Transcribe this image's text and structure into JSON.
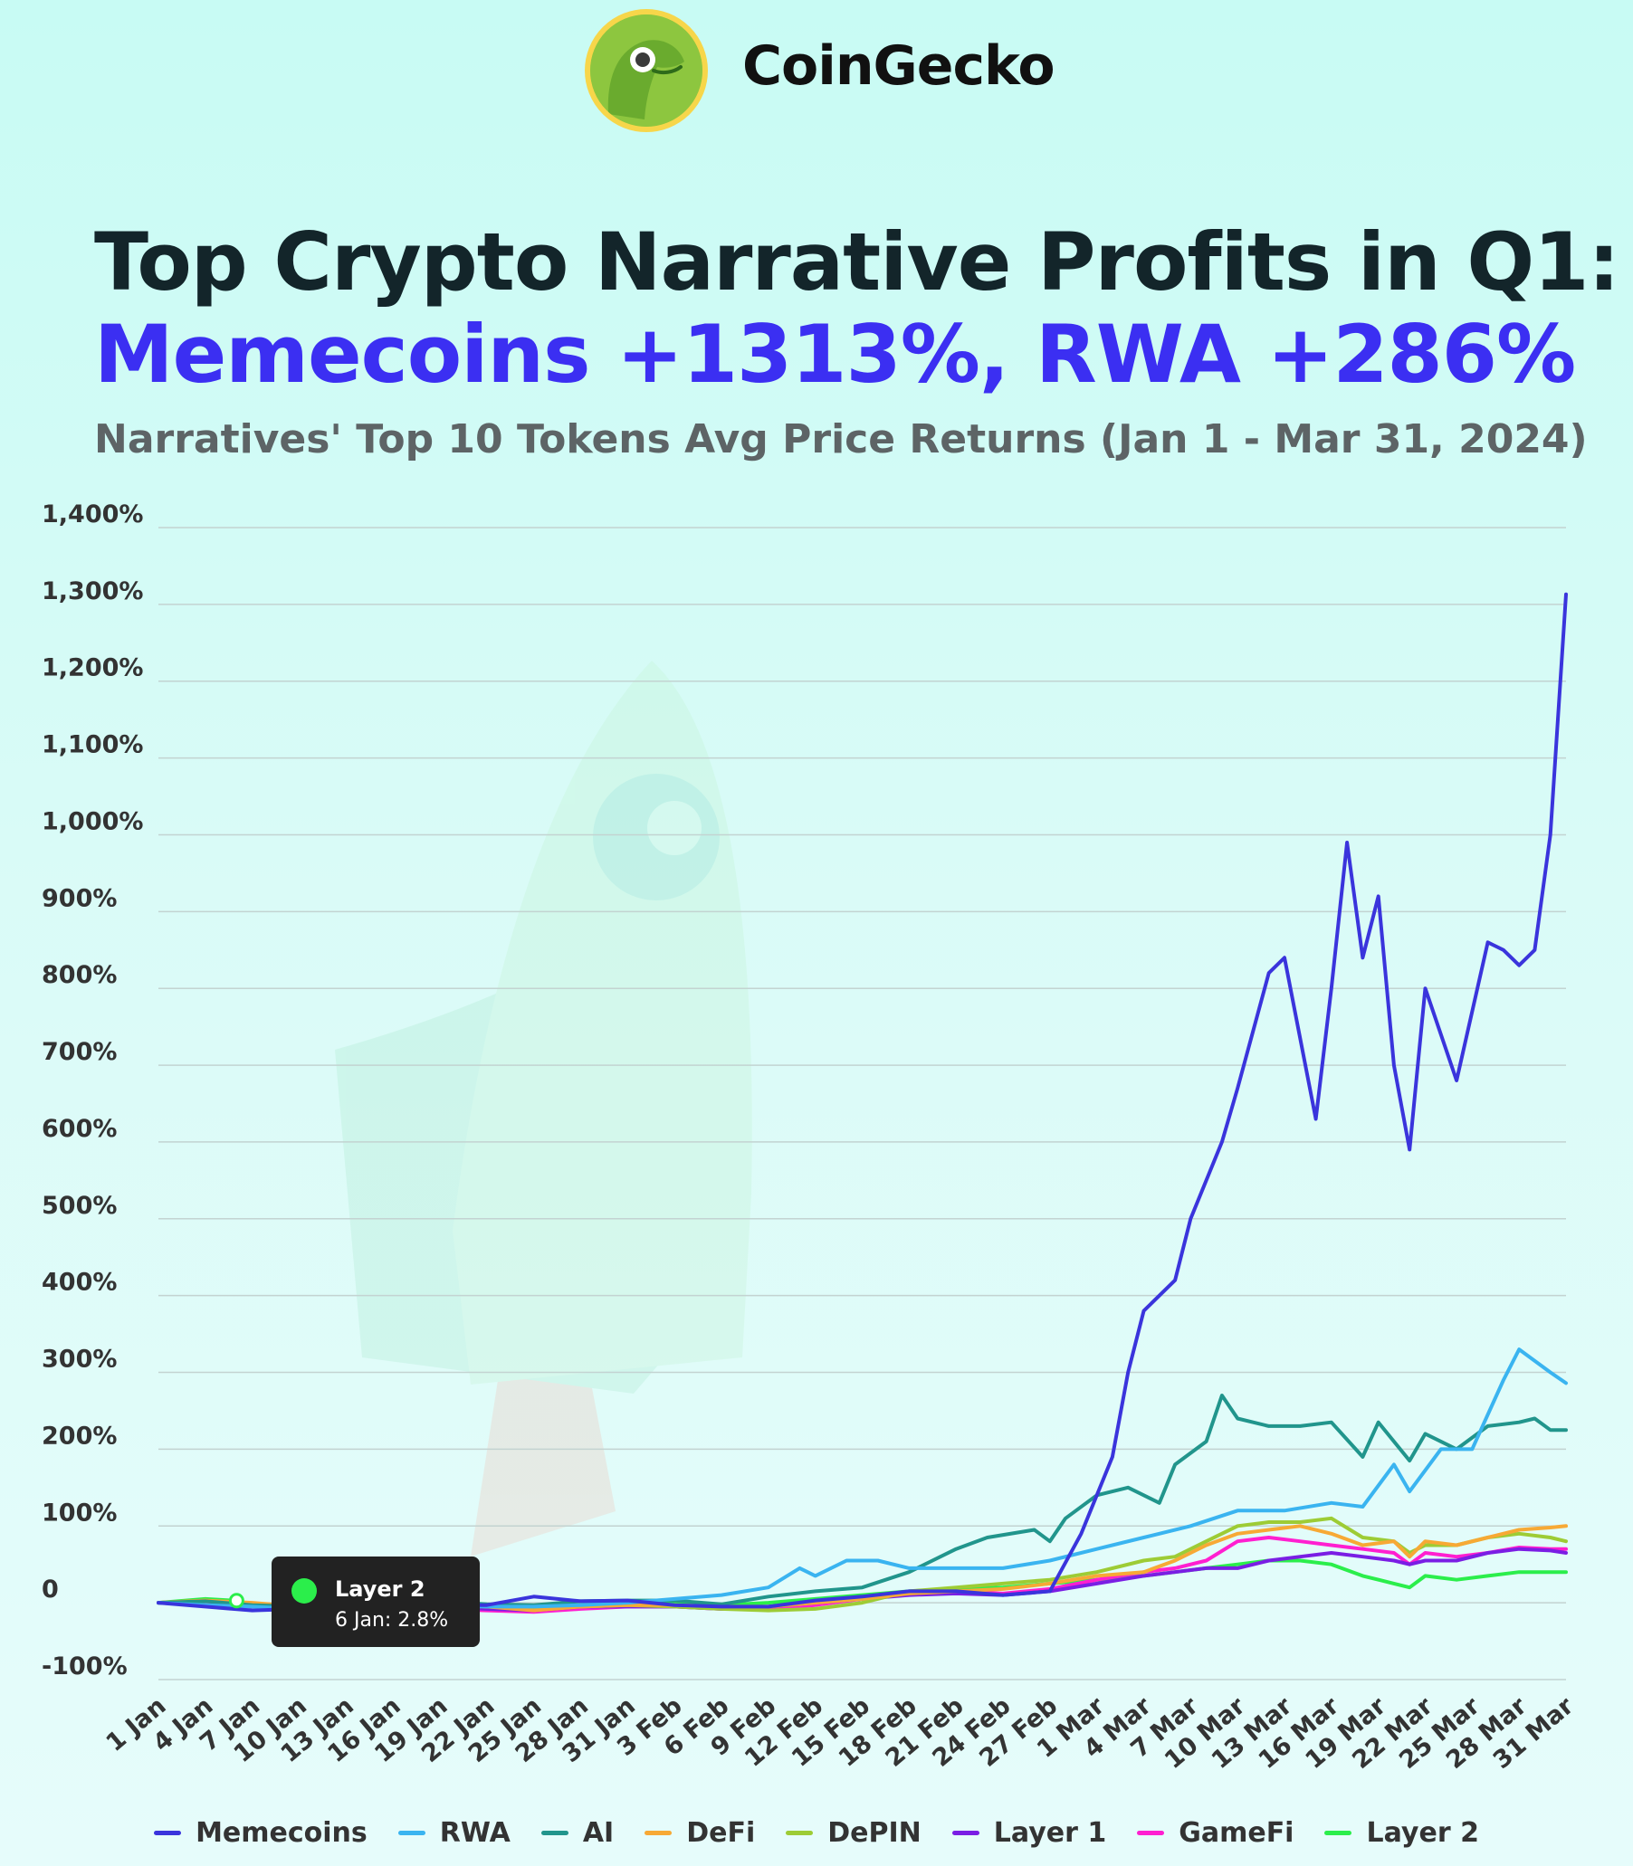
{
  "brand": {
    "name": "CoinGecko"
  },
  "title_line1": "Top Crypto Narrative Profits in Q1:",
  "title_line2": "Memecoins +1313%, RWA +286%",
  "subtitle": "Narratives' Top 10 Tokens Avg Price Returns (Jan 1 - Mar 31, 2024)",
  "tooltip": {
    "series": "Layer 2",
    "text": "6 Jan: 2.8%",
    "color": "#2bee4b"
  },
  "chart_data": {
    "type": "line",
    "title": "Narratives' Top 10 Tokens Avg Price Returns (Jan 1 - Mar 31, 2024)",
    "xlabel": "",
    "ylabel": "",
    "ylim": [
      -100,
      1400
    ],
    "yticks": [
      -100,
      0,
      100,
      200,
      300,
      400,
      500,
      600,
      700,
      800,
      900,
      1000,
      1100,
      1200,
      1300,
      1400
    ],
    "ytick_labels": [
      "-100%",
      "0",
      "100%",
      "200%",
      "300%",
      "400%",
      "500%",
      "600%",
      "700%",
      "800%",
      "900%",
      "1,000%",
      "1,100%",
      "1,200%",
      "1,300%",
      "1,400%"
    ],
    "x_tick_labels": [
      "1 Jan",
      "4 Jan",
      "7 Jan",
      "10 Jan",
      "13 Jan",
      "16 Jan",
      "19 Jan",
      "22 Jan",
      "25 Jan",
      "28 Jan",
      "31 Jan",
      "3 Feb",
      "6 Feb",
      "9 Feb",
      "12 Feb",
      "15 Feb",
      "18 Feb",
      "21 Feb",
      "24 Feb",
      "27 Feb",
      "1 Mar",
      "4 Mar",
      "7 Mar",
      "10 Mar",
      "13 Mar",
      "16 Mar",
      "19 Mar",
      "22 Mar",
      "25 Mar",
      "28 Mar",
      "31 Mar"
    ],
    "grid": true,
    "legend_position": "bottom",
    "series": [
      {
        "name": "Memecoins",
        "color": "#3a34dc",
        "points": [
          [
            1,
            0
          ],
          [
            4,
            -5
          ],
          [
            7,
            -10
          ],
          [
            10,
            -8
          ],
          [
            13,
            -5
          ],
          [
            16,
            -5
          ],
          [
            19,
            -3
          ],
          [
            22,
            -3
          ],
          [
            25,
            8
          ],
          [
            28,
            2
          ],
          [
            31,
            3
          ],
          [
            34,
            -3
          ],
          [
            37,
            -5
          ],
          [
            40,
            -5
          ],
          [
            43,
            3
          ],
          [
            46,
            8
          ],
          [
            49,
            15
          ],
          [
            52,
            15
          ],
          [
            55,
            10
          ],
          [
            58,
            15
          ],
          [
            60,
            90
          ],
          [
            62,
            190
          ],
          [
            63,
            300
          ],
          [
            64,
            380
          ],
          [
            66,
            420
          ],
          [
            67,
            500
          ],
          [
            69,
            600
          ],
          [
            70,
            670
          ],
          [
            72,
            820
          ],
          [
            73,
            840
          ],
          [
            75,
            630
          ],
          [
            76,
            800
          ],
          [
            77,
            990
          ],
          [
            78,
            840
          ],
          [
            79,
            920
          ],
          [
            80,
            700
          ],
          [
            81,
            590
          ],
          [
            82,
            800
          ],
          [
            84,
            680
          ],
          [
            86,
            860
          ],
          [
            87,
            850
          ],
          [
            88,
            830
          ],
          [
            89,
            850
          ],
          [
            90,
            1000
          ],
          [
            91,
            1313
          ]
        ]
      },
      {
        "name": "RWA",
        "color": "#3ab4f0",
        "points": [
          [
            1,
            0
          ],
          [
            4,
            -3
          ],
          [
            7,
            -5
          ],
          [
            10,
            -8
          ],
          [
            13,
            -5
          ],
          [
            16,
            -3
          ],
          [
            19,
            -3
          ],
          [
            22,
            -5
          ],
          [
            25,
            -5
          ],
          [
            28,
            -3
          ],
          [
            31,
            0
          ],
          [
            34,
            5
          ],
          [
            37,
            10
          ],
          [
            40,
            20
          ],
          [
            42,
            45
          ],
          [
            43,
            35
          ],
          [
            45,
            55
          ],
          [
            47,
            55
          ],
          [
            49,
            45
          ],
          [
            52,
            45
          ],
          [
            55,
            45
          ],
          [
            58,
            55
          ],
          [
            61,
            70
          ],
          [
            64,
            85
          ],
          [
            67,
            100
          ],
          [
            70,
            120
          ],
          [
            73,
            120
          ],
          [
            76,
            130
          ],
          [
            78,
            125
          ],
          [
            80,
            180
          ],
          [
            81,
            145
          ],
          [
            83,
            200
          ],
          [
            85,
            200
          ],
          [
            87,
            290
          ],
          [
            88,
            330
          ],
          [
            90,
            300
          ],
          [
            91,
            286
          ]
        ]
      },
      {
        "name": "AI",
        "color": "#21958c",
        "points": [
          [
            1,
            0
          ],
          [
            4,
            2
          ],
          [
            7,
            -3
          ],
          [
            10,
            -5
          ],
          [
            13,
            -3
          ],
          [
            16,
            0
          ],
          [
            19,
            2
          ],
          [
            22,
            -2
          ],
          [
            25,
            -3
          ],
          [
            28,
            2
          ],
          [
            31,
            3
          ],
          [
            34,
            3
          ],
          [
            37,
            -2
          ],
          [
            40,
            8
          ],
          [
            43,
            15
          ],
          [
            46,
            20
          ],
          [
            49,
            40
          ],
          [
            52,
            70
          ],
          [
            54,
            85
          ],
          [
            57,
            95
          ],
          [
            58,
            80
          ],
          [
            59,
            110
          ],
          [
            61,
            140
          ],
          [
            63,
            150
          ],
          [
            65,
            130
          ],
          [
            66,
            180
          ],
          [
            68,
            210
          ],
          [
            69,
            270
          ],
          [
            70,
            240
          ],
          [
            72,
            230
          ],
          [
            74,
            230
          ],
          [
            76,
            235
          ],
          [
            78,
            190
          ],
          [
            79,
            235
          ],
          [
            81,
            185
          ],
          [
            82,
            220
          ],
          [
            84,
            200
          ],
          [
            86,
            230
          ],
          [
            88,
            235
          ],
          [
            89,
            240
          ],
          [
            90,
            225
          ],
          [
            91,
            225
          ]
        ]
      },
      {
        "name": "DeFi",
        "color": "#f7a935",
        "points": [
          [
            1,
            0
          ],
          [
            4,
            3
          ],
          [
            7,
            0
          ],
          [
            10,
            -5
          ],
          [
            13,
            -5
          ],
          [
            16,
            -3
          ],
          [
            19,
            0
          ],
          [
            22,
            -5
          ],
          [
            25,
            -10
          ],
          [
            28,
            -5
          ],
          [
            31,
            -3
          ],
          [
            34,
            -3
          ],
          [
            37,
            -5
          ],
          [
            40,
            -5
          ],
          [
            43,
            0
          ],
          [
            46,
            5
          ],
          [
            49,
            12
          ],
          [
            52,
            15
          ],
          [
            55,
            18
          ],
          [
            58,
            25
          ],
          [
            61,
            35
          ],
          [
            64,
            40
          ],
          [
            66,
            55
          ],
          [
            68,
            75
          ],
          [
            70,
            90
          ],
          [
            72,
            95
          ],
          [
            74,
            100
          ],
          [
            76,
            90
          ],
          [
            78,
            75
          ],
          [
            80,
            80
          ],
          [
            81,
            60
          ],
          [
            82,
            80
          ],
          [
            84,
            75
          ],
          [
            86,
            85
          ],
          [
            88,
            95
          ],
          [
            90,
            98
          ],
          [
            91,
            100
          ]
        ]
      },
      {
        "name": "DePIN",
        "color": "#9dcc35",
        "points": [
          [
            1,
            0
          ],
          [
            4,
            3
          ],
          [
            7,
            -3
          ],
          [
            10,
            -5
          ],
          [
            13,
            -5
          ],
          [
            16,
            -5
          ],
          [
            19,
            -3
          ],
          [
            22,
            -5
          ],
          [
            25,
            -8
          ],
          [
            28,
            -5
          ],
          [
            31,
            -3
          ],
          [
            34,
            -5
          ],
          [
            37,
            -8
          ],
          [
            40,
            -10
          ],
          [
            43,
            -8
          ],
          [
            46,
            0
          ],
          [
            49,
            15
          ],
          [
            52,
            20
          ],
          [
            55,
            25
          ],
          [
            58,
            30
          ],
          [
            61,
            40
          ],
          [
            64,
            55
          ],
          [
            66,
            60
          ],
          [
            68,
            80
          ],
          [
            70,
            100
          ],
          [
            72,
            105
          ],
          [
            74,
            105
          ],
          [
            76,
            110
          ],
          [
            78,
            85
          ],
          [
            80,
            80
          ],
          [
            81,
            65
          ],
          [
            82,
            75
          ],
          [
            84,
            75
          ],
          [
            86,
            85
          ],
          [
            88,
            90
          ],
          [
            90,
            85
          ],
          [
            91,
            80
          ]
        ]
      },
      {
        "name": "Layer 1",
        "color": "#7a1ee4",
        "points": [
          [
            1,
            0
          ],
          [
            4,
            -3
          ],
          [
            7,
            -5
          ],
          [
            10,
            -8
          ],
          [
            13,
            -10
          ],
          [
            16,
            -8
          ],
          [
            19,
            -5
          ],
          [
            22,
            -8
          ],
          [
            25,
            -10
          ],
          [
            28,
            -5
          ],
          [
            31,
            -5
          ],
          [
            34,
            -5
          ],
          [
            37,
            -8
          ],
          [
            40,
            -5
          ],
          [
            43,
            0
          ],
          [
            46,
            5
          ],
          [
            49,
            10
          ],
          [
            52,
            12
          ],
          [
            55,
            10
          ],
          [
            58,
            15
          ],
          [
            61,
            25
          ],
          [
            64,
            35
          ],
          [
            66,
            40
          ],
          [
            68,
            45
          ],
          [
            70,
            45
          ],
          [
            72,
            55
          ],
          [
            74,
            60
          ],
          [
            76,
            65
          ],
          [
            78,
            60
          ],
          [
            80,
            55
          ],
          [
            81,
            50
          ],
          [
            82,
            55
          ],
          [
            84,
            55
          ],
          [
            86,
            65
          ],
          [
            88,
            70
          ],
          [
            90,
            68
          ],
          [
            91,
            65
          ]
        ]
      },
      {
        "name": "GameFi",
        "color": "#ff1fd0",
        "points": [
          [
            1,
            0
          ],
          [
            4,
            2
          ],
          [
            7,
            -5
          ],
          [
            10,
            -8
          ],
          [
            13,
            -10
          ],
          [
            16,
            -8
          ],
          [
            19,
            -8
          ],
          [
            22,
            -10
          ],
          [
            25,
            -12
          ],
          [
            28,
            -8
          ],
          [
            31,
            -5
          ],
          [
            34,
            -5
          ],
          [
            37,
            -8
          ],
          [
            40,
            -8
          ],
          [
            43,
            -3
          ],
          [
            46,
            5
          ],
          [
            49,
            12
          ],
          [
            52,
            15
          ],
          [
            55,
            12
          ],
          [
            58,
            18
          ],
          [
            61,
            30
          ],
          [
            64,
            40
          ],
          [
            66,
            45
          ],
          [
            68,
            55
          ],
          [
            70,
            80
          ],
          [
            72,
            85
          ],
          [
            74,
            80
          ],
          [
            76,
            75
          ],
          [
            78,
            70
          ],
          [
            80,
            65
          ],
          [
            81,
            50
          ],
          [
            82,
            65
          ],
          [
            84,
            60
          ],
          [
            86,
            65
          ],
          [
            88,
            72
          ],
          [
            90,
            70
          ],
          [
            91,
            70
          ]
        ]
      },
      {
        "name": "Layer 2",
        "color": "#2bee4b",
        "points": [
          [
            1,
            0
          ],
          [
            4,
            5
          ],
          [
            6,
            2.8
          ],
          [
            7,
            -3
          ],
          [
            10,
            -5
          ],
          [
            13,
            -5
          ],
          [
            16,
            -3
          ],
          [
            19,
            0
          ],
          [
            22,
            -3
          ],
          [
            25,
            -5
          ],
          [
            28,
            -3
          ],
          [
            31,
            0
          ],
          [
            34,
            0
          ],
          [
            37,
            -3
          ],
          [
            40,
            0
          ],
          [
            43,
            5
          ],
          [
            46,
            10
          ],
          [
            49,
            15
          ],
          [
            52,
            18
          ],
          [
            55,
            20
          ],
          [
            58,
            25
          ],
          [
            61,
            30
          ],
          [
            64,
            35
          ],
          [
            66,
            40
          ],
          [
            68,
            45
          ],
          [
            70,
            50
          ],
          [
            72,
            55
          ],
          [
            74,
            55
          ],
          [
            76,
            50
          ],
          [
            78,
            35
          ],
          [
            80,
            25
          ],
          [
            81,
            20
          ],
          [
            82,
            35
          ],
          [
            84,
            30
          ],
          [
            86,
            35
          ],
          [
            88,
            40
          ],
          [
            90,
            40
          ],
          [
            91,
            40
          ]
        ]
      }
    ]
  }
}
